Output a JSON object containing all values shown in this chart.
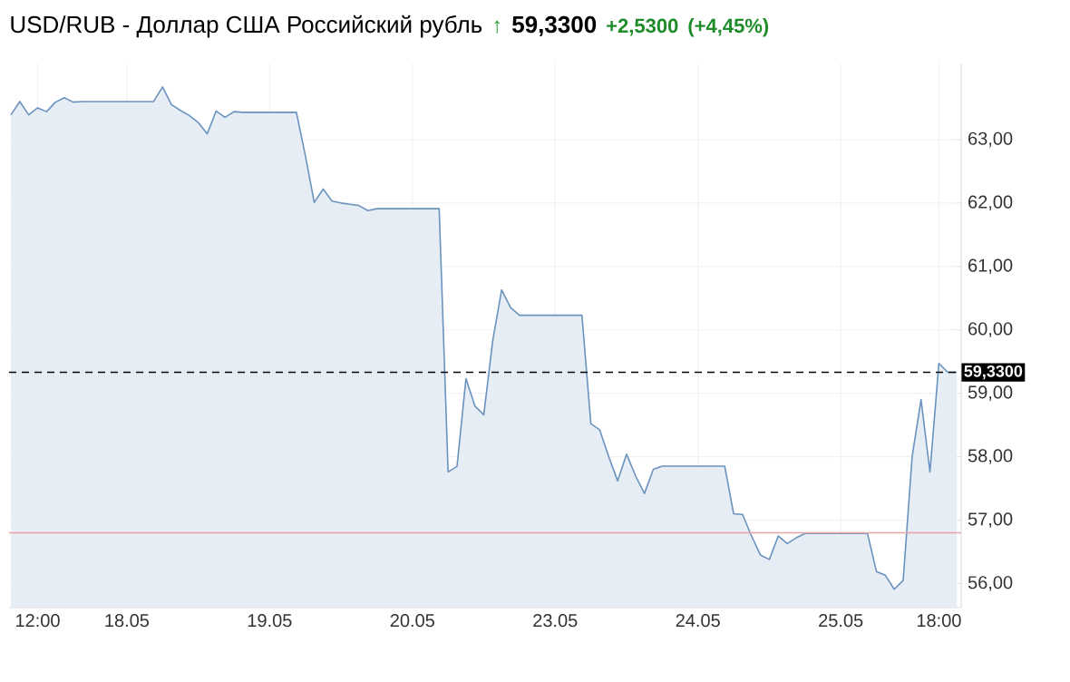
{
  "chart_data": {
    "type": "area",
    "title": "USD/RUB - Доллар США Российский рубль",
    "annotations": [
      "↑",
      "59,3300",
      "+2,5300",
      "(+4,45%)"
    ],
    "categories": [
      null,
      null,
      null,
      "12:00",
      null,
      null,
      null,
      null,
      null,
      null,
      null,
      null,
      null,
      "18.05",
      null,
      null,
      null,
      null,
      null,
      null,
      null,
      null,
      null,
      null,
      null,
      null,
      null,
      null,
      null,
      "19.05",
      null,
      null,
      null,
      null,
      null,
      null,
      null,
      null,
      null,
      null,
      null,
      null,
      null,
      null,
      null,
      "20.05",
      null,
      null,
      null,
      null,
      null,
      null,
      null,
      null,
      null,
      null,
      null,
      null,
      null,
      null,
      null,
      "23.05",
      null,
      null,
      null,
      null,
      null,
      null,
      null,
      null,
      null,
      null,
      null,
      null,
      null,
      null,
      null,
      "24.05",
      null,
      null,
      null,
      null,
      null,
      null,
      null,
      null,
      null,
      null,
      null,
      null,
      null,
      null,
      null,
      "25.05",
      null,
      null,
      null,
      null,
      null,
      null,
      null,
      null,
      null,
      null,
      "18:00",
      null,
      null
    ],
    "ylim": [
      55.62,
      64.2
    ],
    "yticks": [
      {
        "value": 56,
        "label": "56,00"
      },
      {
        "value": 57,
        "label": "57,00"
      },
      {
        "value": 58,
        "label": "58,00"
      },
      {
        "value": 59,
        "label": "59,00"
      },
      {
        "value": 60,
        "label": "60,00"
      },
      {
        "value": 61,
        "label": "61,00"
      },
      {
        "value": 62,
        "label": "62,00"
      },
      {
        "value": 63,
        "label": "63,00"
      }
    ],
    "grid": true,
    "ref_lines": [
      {
        "axis": "y",
        "value": 59.33,
        "label": "59,3300",
        "color": "#000000",
        "line_style": "dashed"
      },
      {
        "axis": "y",
        "value": 56.8,
        "color": "#e8a4a4",
        "line_style": "solid"
      }
    ],
    "series": [
      {
        "color": "#6a93bf",
        "values": [
          63.39,
          63.6,
          63.39,
          63.5,
          63.44,
          63.59,
          63.66,
          63.59,
          63.6,
          63.6,
          63.6,
          63.6,
          63.6,
          63.6,
          63.6,
          63.6,
          63.6,
          63.83,
          63.55,
          63.46,
          63.38,
          63.27,
          63.09,
          63.45,
          63.35,
          63.44,
          63.43,
          63.43,
          63.43,
          63.43,
          63.43,
          63.43,
          63.43,
          62.75,
          62.01,
          62.22,
          62.03,
          62.0,
          61.98,
          61.96,
          61.88,
          61.91,
          61.91,
          61.91,
          61.91,
          61.91,
          61.91,
          61.91,
          61.91,
          57.76,
          57.85,
          59.23,
          58.8,
          58.66,
          59.83,
          60.63,
          60.35,
          60.23,
          60.23,
          60.23,
          60.23,
          60.23,
          60.23,
          60.23,
          60.23,
          58.52,
          58.42,
          58.0,
          57.62,
          58.04,
          57.7,
          57.42,
          57.8,
          57.85,
          57.85,
          57.85,
          57.85,
          57.85,
          57.85,
          57.85,
          57.85,
          57.1,
          57.09,
          56.75,
          56.45,
          56.38,
          56.75,
          56.63,
          56.72,
          56.79,
          56.79,
          56.79,
          56.79,
          56.79,
          56.79,
          56.79,
          56.79,
          56.19,
          56.13,
          55.91,
          56.05,
          58.0,
          58.9,
          57.76,
          59.47,
          59.33,
          59.33
        ]
      }
    ]
  }
}
